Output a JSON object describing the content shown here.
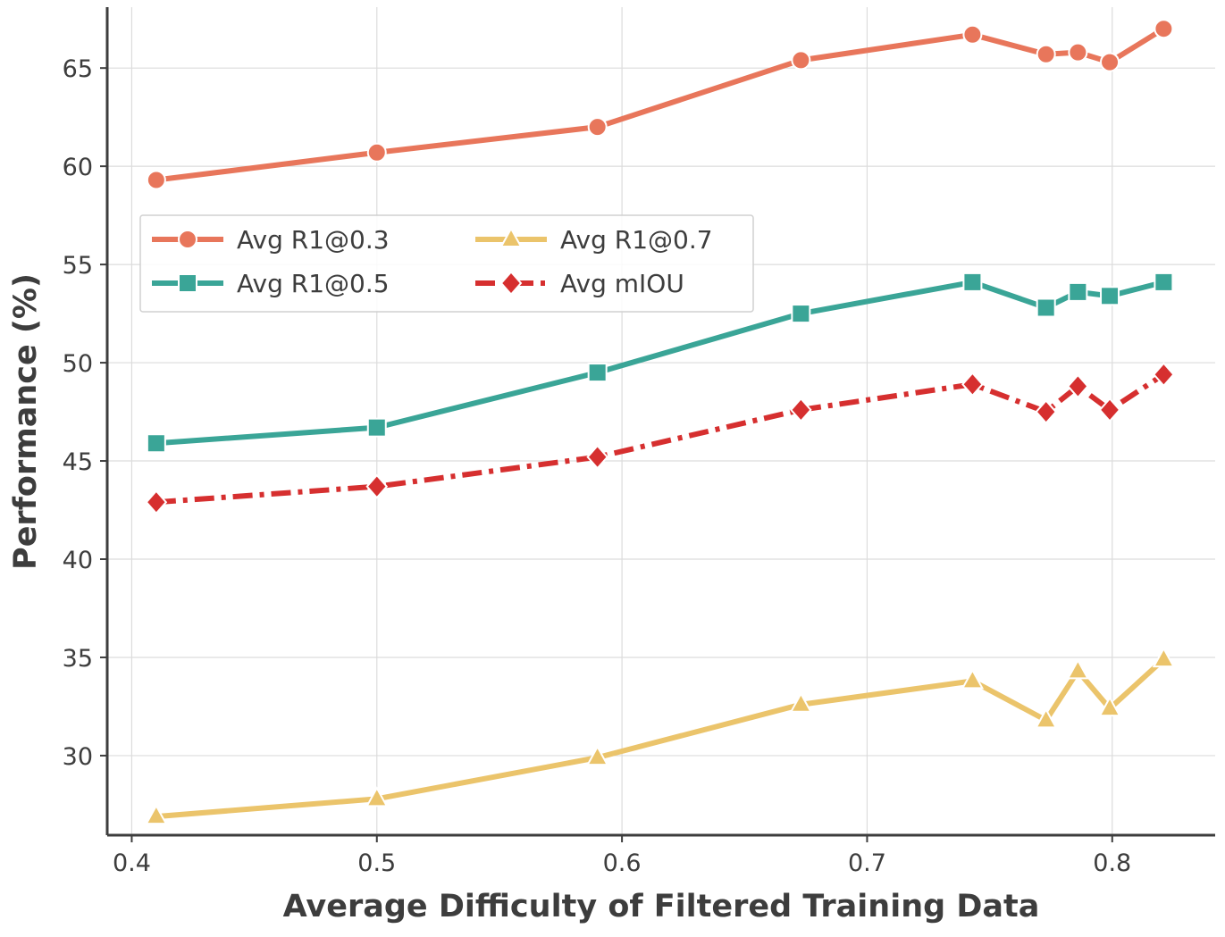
{
  "chart_data": {
    "type": "line",
    "title": "",
    "xlabel": "Average Difficulty of Filtered Training Data",
    "ylabel": "Performance (%)",
    "xlim": [
      0.39,
      0.842
    ],
    "ylim": [
      25.95,
      68.1
    ],
    "xticks": [
      0.4,
      0.5,
      0.6,
      0.7,
      0.8
    ],
    "xtick_labels": [
      "0.4",
      "0.5",
      "0.6",
      "0.7",
      "0.8"
    ],
    "yticks": [
      30,
      35,
      40,
      45,
      50,
      55,
      60,
      65
    ],
    "ytick_labels": [
      "30",
      "35",
      "40",
      "45",
      "50",
      "55",
      "60",
      "65"
    ],
    "grid": true,
    "legend_position": "upper-left",
    "x": [
      0.41,
      0.5,
      0.59,
      0.673,
      0.743,
      0.773,
      0.786,
      0.799,
      0.821
    ],
    "series": [
      {
        "name": "Avg R1@0.3",
        "color": "#e8765b",
        "marker": "circle",
        "dash": "solid",
        "values": [
          59.3,
          60.7,
          62.0,
          65.4,
          66.7,
          65.7,
          65.8,
          65.3,
          67.0
        ]
      },
      {
        "name": "Avg R1@0.5",
        "color": "#3aa597",
        "marker": "square",
        "dash": "solid",
        "values": [
          45.9,
          46.7,
          49.5,
          52.5,
          54.1,
          52.8,
          53.6,
          53.4,
          54.1
        ]
      },
      {
        "name": "Avg R1@0.7",
        "color": "#ebc46b",
        "marker": "triangle",
        "dash": "solid",
        "values": [
          26.9,
          27.8,
          29.9,
          32.6,
          33.8,
          31.8,
          34.3,
          32.4,
          34.9
        ]
      },
      {
        "name": "Avg mIOU",
        "color": "#d62f2f",
        "marker": "diamond",
        "dash": "dashdot",
        "values": [
          42.9,
          43.7,
          45.2,
          47.6,
          48.9,
          47.5,
          48.8,
          47.6,
          49.4
        ]
      }
    ]
  }
}
